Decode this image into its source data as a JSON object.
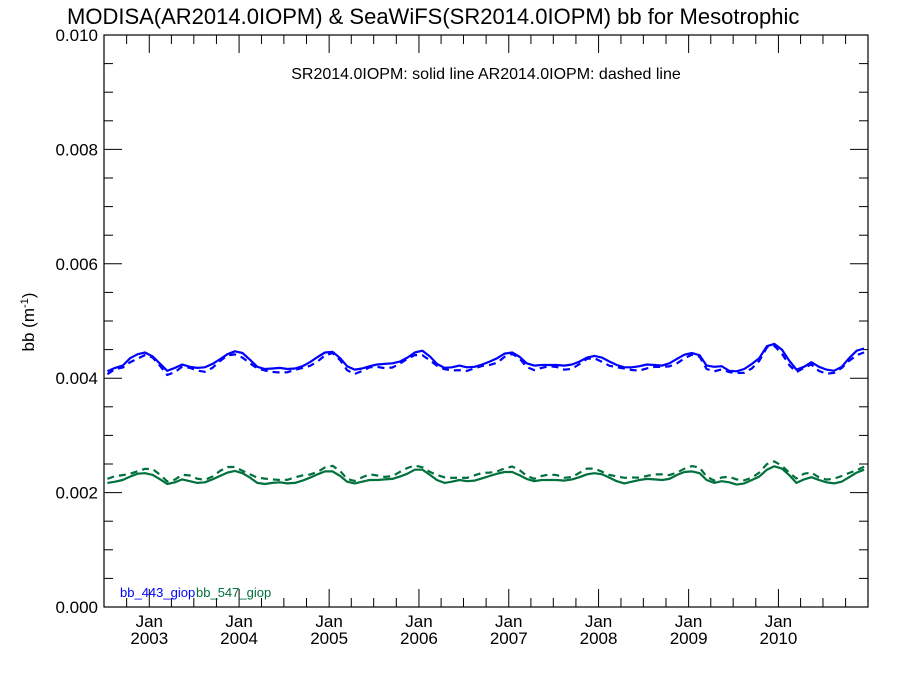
{
  "chart_data": {
    "type": "line",
    "title": "MODISA(AR2014.0IOPM) & SeaWiFS(SR2014.0IOPM)  bb for Mesotrophic",
    "annotation": "SR2014.0IOPM: solid line   AR2014.0IOPM: dashed line",
    "ylabel_main": "bb (m",
    "ylabel_sup": "-1",
    "ylabel_close": ")",
    "xlabel": "",
    "ylim": [
      0.0,
      0.01
    ],
    "y_ticks": [
      "0.000",
      "0.002",
      "0.004",
      "0.006",
      "0.008",
      "0.010"
    ],
    "xlim": [
      "2002-07-01",
      "2010-12-31"
    ],
    "x_ticks": [
      {
        "month": "Jan",
        "year": "2003",
        "date": "2003-01-01"
      },
      {
        "month": "Jan",
        "year": "2004",
        "date": "2004-01-01"
      },
      {
        "month": "Jan",
        "year": "2005",
        "date": "2005-01-01"
      },
      {
        "month": "Jan",
        "year": "2006",
        "date": "2006-01-01"
      },
      {
        "month": "Jan",
        "year": "2007",
        "date": "2007-01-01"
      },
      {
        "month": "Jan",
        "year": "2008",
        "date": "2008-01-01"
      },
      {
        "month": "Jan",
        "year": "2009",
        "date": "2009-01-01"
      },
      {
        "month": "Jan",
        "year": "2010",
        "date": "2010-01-01"
      }
    ],
    "grid": false,
    "legend_position": "bottom-left",
    "x": [
      "2002-07",
      "2002-08",
      "2002-09",
      "2002-10",
      "2002-11",
      "2002-12",
      "2003-01",
      "2003-02",
      "2003-03",
      "2003-04",
      "2003-05",
      "2003-06",
      "2003-07",
      "2003-08",
      "2003-09",
      "2003-10",
      "2003-11",
      "2003-12",
      "2004-01",
      "2004-02",
      "2004-03",
      "2004-04",
      "2004-05",
      "2004-06",
      "2004-07",
      "2004-08",
      "2004-09",
      "2004-10",
      "2004-11",
      "2004-12",
      "2005-01",
      "2005-02",
      "2005-03",
      "2005-04",
      "2005-05",
      "2005-06",
      "2005-07",
      "2005-08",
      "2005-09",
      "2005-10",
      "2005-11",
      "2005-12",
      "2006-01",
      "2006-02",
      "2006-03",
      "2006-04",
      "2006-05",
      "2006-06",
      "2006-07",
      "2006-08",
      "2006-09",
      "2006-10",
      "2006-11",
      "2006-12",
      "2007-01",
      "2007-02",
      "2007-03",
      "2007-04",
      "2007-05",
      "2007-06",
      "2007-07",
      "2007-08",
      "2007-09",
      "2007-10",
      "2007-11",
      "2007-12",
      "2008-01",
      "2008-02",
      "2008-03",
      "2008-04",
      "2008-05",
      "2008-06",
      "2008-07",
      "2008-08",
      "2008-09",
      "2008-10",
      "2008-11",
      "2008-12",
      "2009-01",
      "2009-02",
      "2009-03",
      "2009-04",
      "2009-05",
      "2009-06",
      "2009-07",
      "2009-08",
      "2009-09",
      "2009-10",
      "2009-11",
      "2009-12",
      "2010-01",
      "2010-02",
      "2010-03",
      "2010-04",
      "2010-05",
      "2010-06",
      "2010-07",
      "2010-08",
      "2010-09",
      "2010-10",
      "2010-11",
      "2010-12"
    ],
    "series": [
      {
        "name": "bb_443_giop",
        "product": "SR2014.0IOPM",
        "color": "#0000ff",
        "dash": "solid",
        "values": [
          0.00412,
          0.00418,
          0.00422,
          0.00435,
          0.00442,
          0.00445,
          0.00438,
          0.00425,
          0.00413,
          0.00418,
          0.00424,
          0.0042,
          0.00418,
          0.00419,
          0.00425,
          0.00433,
          0.00442,
          0.00447,
          0.00444,
          0.00432,
          0.0042,
          0.00416,
          0.00417,
          0.00418,
          0.00416,
          0.00417,
          0.00421,
          0.00428,
          0.00437,
          0.00445,
          0.00446,
          0.00435,
          0.00421,
          0.00415,
          0.00417,
          0.00421,
          0.00424,
          0.00425,
          0.00426,
          0.00429,
          0.00436,
          0.00445,
          0.00448,
          0.00438,
          0.00425,
          0.00418,
          0.00419,
          0.00422,
          0.00419,
          0.0042,
          0.00424,
          0.00429,
          0.00435,
          0.00443,
          0.00445,
          0.00437,
          0.00426,
          0.00422,
          0.00423,
          0.00423,
          0.00423,
          0.00422,
          0.00424,
          0.00429,
          0.00436,
          0.00439,
          0.00436,
          0.00429,
          0.00423,
          0.00419,
          0.00419,
          0.00421,
          0.00424,
          0.00423,
          0.00422,
          0.00426,
          0.00434,
          0.00441,
          0.00444,
          0.0044,
          0.00422,
          0.0042,
          0.00421,
          0.00413,
          0.00412,
          0.00416,
          0.00425,
          0.00435,
          0.00456,
          0.0046,
          0.0045,
          0.0043,
          0.00415,
          0.0042,
          0.00428,
          0.0042,
          0.00415,
          0.00413,
          0.0042,
          0.00435,
          0.00448,
          0.00452
        ]
      },
      {
        "name": "bb_443_giop",
        "product": "AR2014.0IOPM",
        "color": "#0000ff",
        "dash": "dashed",
        "values": null
      },
      {
        "name": "bb_547_giop",
        "product": "SR2014.0IOPM",
        "color": "#00703c",
        "dash": "solid",
        "values": [
          0.00217,
          0.00219,
          0.00222,
          0.00228,
          0.00233,
          0.00234,
          0.00231,
          0.00223,
          0.00215,
          0.00218,
          0.00223,
          0.0022,
          0.00217,
          0.00218,
          0.00223,
          0.00229,
          0.00235,
          0.00238,
          0.00234,
          0.00226,
          0.00217,
          0.00215,
          0.00217,
          0.00218,
          0.00216,
          0.00217,
          0.00221,
          0.00226,
          0.00232,
          0.00237,
          0.00237,
          0.00229,
          0.00219,
          0.00216,
          0.00219,
          0.00222,
          0.00222,
          0.00223,
          0.00224,
          0.00228,
          0.00233,
          0.0024,
          0.0024,
          0.00231,
          0.00222,
          0.00217,
          0.00219,
          0.00222,
          0.0022,
          0.00221,
          0.00225,
          0.00229,
          0.00233,
          0.00236,
          0.00236,
          0.0023,
          0.00224,
          0.0022,
          0.00222,
          0.00222,
          0.00222,
          0.00221,
          0.00223,
          0.00227,
          0.00232,
          0.00234,
          0.00232,
          0.00226,
          0.0022,
          0.00216,
          0.00219,
          0.00222,
          0.00224,
          0.00223,
          0.00222,
          0.00224,
          0.00231,
          0.00236,
          0.00237,
          0.00234,
          0.00222,
          0.00217,
          0.0022,
          0.00218,
          0.00214,
          0.00216,
          0.00222,
          0.00228,
          0.0024,
          0.00246,
          0.00242,
          0.0023,
          0.00217,
          0.00223,
          0.00227,
          0.00222,
          0.00218,
          0.00216,
          0.00219,
          0.00227,
          0.00235,
          0.0024
        ]
      },
      {
        "name": "bb_547_giop",
        "product": "AR2014.0IOPM",
        "color": "#00703c",
        "dash": "dashed",
        "values": null
      }
    ]
  },
  "legend": [
    {
      "label": "bb_443_giop",
      "color": "#0000ff"
    },
    {
      "label": "bb_547_giop",
      "color": "#00703c"
    }
  ]
}
